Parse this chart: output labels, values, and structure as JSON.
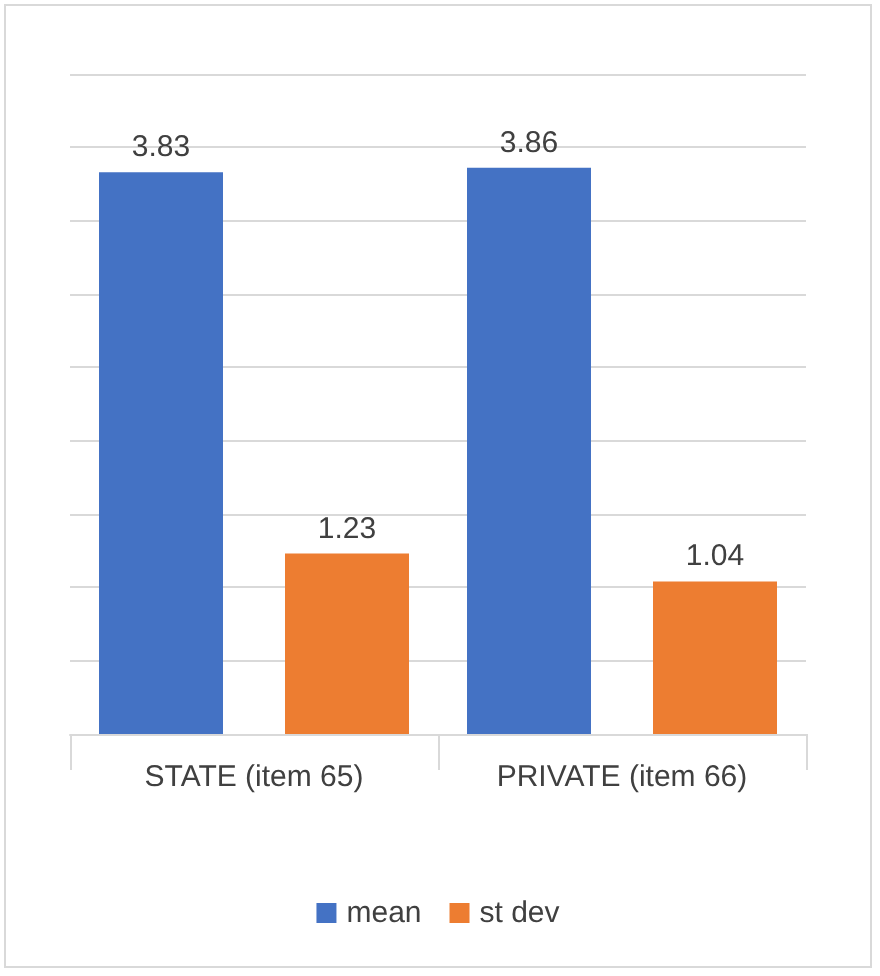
{
  "chart_data": {
    "type": "bar",
    "categories": [
      "STATE (item 65)",
      "PRIVATE (item 66)"
    ],
    "series": [
      {
        "name": "mean",
        "color": "#4472c4",
        "values": [
          3.83,
          3.86
        ]
      },
      {
        "name": "st dev",
        "color": "#ed7d31",
        "values": [
          1.23,
          1.04
        ]
      }
    ],
    "ylim": [
      0,
      4.5
    ],
    "yticks": [
      {
        "value": 0,
        "label": null
      },
      {
        "value": 0.5,
        "label": null
      },
      {
        "value": 1,
        "label": null
      },
      {
        "value": 1.5,
        "label": null
      },
      {
        "value": 2,
        "label": null
      },
      {
        "value": 2.5,
        "label": null
      },
      {
        "value": 3,
        "label": null
      },
      {
        "value": 3.5,
        "label": null
      },
      {
        "value": 4,
        "label": null
      },
      {
        "value": 4.5,
        "label": null
      }
    ],
    "tick_labels": "x",
    "grid": "y",
    "legend": "bottom",
    "data_labels": true
  }
}
